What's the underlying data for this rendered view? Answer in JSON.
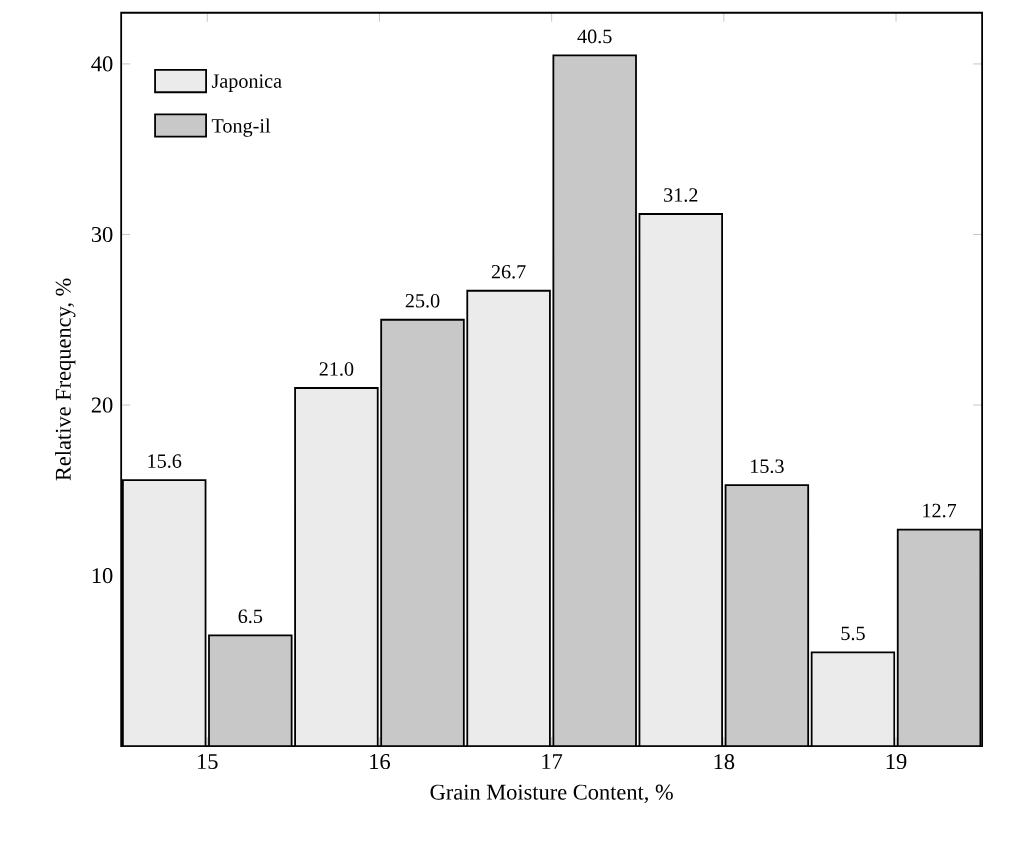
{
  "chart_data": {
    "type": "bar",
    "xlabel": "Grain Moisture Content, %",
    "ylabel": "Relative Frequency, %",
    "categories": [
      "15",
      "16",
      "17",
      "18",
      "19"
    ],
    "series": [
      {
        "name": "Japonica",
        "color": "#ebebeb",
        "values": [
          15.6,
          21.0,
          26.7,
          31.2,
          5.5
        ],
        "value_labels": [
          "15.6",
          "21.0",
          "26.7",
          "31.2",
          "5.5"
        ]
      },
      {
        "name": "Tong-il",
        "color": "#c8c8c8",
        "values": [
          6.5,
          25.0,
          40.5,
          15.3,
          12.7
        ],
        "value_labels": [
          "6.5",
          "25.0",
          "40.5",
          "15.3",
          "12.7"
        ]
      }
    ],
    "ylim": [
      0,
      43
    ],
    "yticks": [
      10,
      20,
      30,
      40
    ],
    "legend": "top left",
    "grid": false
  }
}
